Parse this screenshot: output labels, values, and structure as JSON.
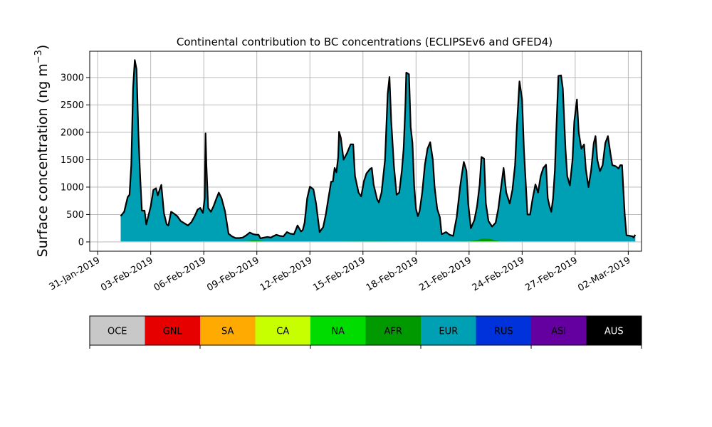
{
  "chart_data": {
    "type": "area",
    "title": "Continental contribution to BC concentrations (ECLIPSEv6 and GFED4)",
    "ylabel_main": "Surface concentration (ng m",
    "ylabel_sup": "−3",
    "ylabel_close": ")",
    "xlabel": "",
    "xlim": [
      -1.45,
      29.75
    ],
    "ylim": [
      -170,
      3480
    ],
    "grid": true,
    "x_ticks": [
      {
        "x": -1,
        "label": "31-Jan-2019"
      },
      {
        "x": 2,
        "label": "03-Feb-2019"
      },
      {
        "x": 5,
        "label": "06-Feb-2019"
      },
      {
        "x": 8,
        "label": "09-Feb-2019"
      },
      {
        "x": 11,
        "label": "12-Feb-2019"
      },
      {
        "x": 14,
        "label": "15-Feb-2019"
      },
      {
        "x": 17,
        "label": "18-Feb-2019"
      },
      {
        "x": 20,
        "label": "21-Feb-2019"
      },
      {
        "x": 23,
        "label": "24-Feb-2019"
      },
      {
        "x": 26,
        "label": "27-Feb-2019"
      },
      {
        "x": 29,
        "label": "02-Mar-2019"
      }
    ],
    "y_ticks": [
      0,
      500,
      1000,
      1500,
      2000,
      2500,
      3000
    ],
    "x_unit": "days after 01-Feb-2019 00:00",
    "series": [
      {
        "name": "EUR",
        "color": "#00a0b4",
        "points": [
          [
            0.3,
            470
          ],
          [
            0.5,
            550
          ],
          [
            0.7,
            820
          ],
          [
            0.8,
            860
          ],
          [
            0.9,
            1400
          ],
          [
            1.0,
            2800
          ],
          [
            1.1,
            3320
          ],
          [
            1.2,
            3150
          ],
          [
            1.3,
            2000
          ],
          [
            1.4,
            1200
          ],
          [
            1.5,
            570
          ],
          [
            1.65,
            570
          ],
          [
            1.75,
            320
          ],
          [
            2.0,
            650
          ],
          [
            2.15,
            950
          ],
          [
            2.3,
            980
          ],
          [
            2.4,
            850
          ],
          [
            2.5,
            950
          ],
          [
            2.6,
            1040
          ],
          [
            2.75,
            520
          ],
          [
            2.9,
            320
          ],
          [
            3.0,
            300
          ],
          [
            3.15,
            550
          ],
          [
            3.3,
            520
          ],
          [
            3.5,
            470
          ],
          [
            3.7,
            380
          ],
          [
            3.9,
            340
          ],
          [
            4.1,
            300
          ],
          [
            4.3,
            360
          ],
          [
            4.5,
            480
          ],
          [
            4.65,
            590
          ],
          [
            4.8,
            620
          ],
          [
            4.95,
            530
          ],
          [
            5.05,
            800
          ],
          [
            5.1,
            1980
          ],
          [
            5.15,
            1400
          ],
          [
            5.25,
            620
          ],
          [
            5.4,
            550
          ],
          [
            5.55,
            650
          ],
          [
            5.7,
            780
          ],
          [
            5.85,
            900
          ],
          [
            6.0,
            800
          ],
          [
            6.2,
            560
          ],
          [
            6.4,
            150
          ],
          [
            6.6,
            100
          ],
          [
            6.8,
            70
          ],
          [
            7.0,
            70
          ],
          [
            7.2,
            80
          ],
          [
            7.4,
            120
          ],
          [
            7.6,
            170
          ],
          [
            7.8,
            140
          ],
          [
            8.0,
            130
          ],
          [
            8.1,
            130
          ],
          [
            8.2,
            65
          ],
          [
            8.4,
            80
          ],
          [
            8.6,
            90
          ],
          [
            8.8,
            80
          ],
          [
            8.9,
            100
          ],
          [
            9.1,
            130
          ],
          [
            9.3,
            110
          ],
          [
            9.5,
            100
          ],
          [
            9.7,
            180
          ],
          [
            9.9,
            150
          ],
          [
            10.1,
            140
          ],
          [
            10.3,
            300
          ],
          [
            10.5,
            190
          ],
          [
            10.6,
            220
          ],
          [
            10.7,
            350
          ],
          [
            10.85,
            800
          ],
          [
            11.0,
            1010
          ],
          [
            11.2,
            960
          ],
          [
            11.35,
            700
          ],
          [
            11.55,
            180
          ],
          [
            11.75,
            270
          ],
          [
            11.9,
            500
          ],
          [
            12.05,
            800
          ],
          [
            12.2,
            1100
          ],
          [
            12.3,
            1100
          ],
          [
            12.4,
            1350
          ],
          [
            12.5,
            1270
          ],
          [
            12.6,
            1550
          ],
          [
            12.65,
            2010
          ],
          [
            12.75,
            1900
          ],
          [
            12.9,
            1500
          ],
          [
            13.1,
            1620
          ],
          [
            13.3,
            1780
          ],
          [
            13.45,
            1780
          ],
          [
            13.55,
            1200
          ],
          [
            13.75,
            900
          ],
          [
            13.9,
            830
          ],
          [
            14.05,
            1100
          ],
          [
            14.2,
            1250
          ],
          [
            14.4,
            1330
          ],
          [
            14.5,
            1350
          ],
          [
            14.6,
            1050
          ],
          [
            14.8,
            780
          ],
          [
            14.9,
            720
          ],
          [
            15.05,
            900
          ],
          [
            15.25,
            1500
          ],
          [
            15.4,
            2700
          ],
          [
            15.5,
            3010
          ],
          [
            15.6,
            2200
          ],
          [
            15.75,
            1400
          ],
          [
            15.9,
            860
          ],
          [
            16.05,
            900
          ],
          [
            16.2,
            1300
          ],
          [
            16.3,
            1700
          ],
          [
            16.4,
            2500
          ],
          [
            16.45,
            3090
          ],
          [
            16.6,
            3060
          ],
          [
            16.7,
            2100
          ],
          [
            16.8,
            1800
          ],
          [
            16.9,
            1000
          ],
          [
            17.0,
            600
          ],
          [
            17.1,
            470
          ],
          [
            17.2,
            560
          ],
          [
            17.35,
            900
          ],
          [
            17.5,
            1400
          ],
          [
            17.65,
            1700
          ],
          [
            17.8,
            1820
          ],
          [
            17.95,
            1500
          ],
          [
            18.05,
            1000
          ],
          [
            18.2,
            600
          ],
          [
            18.35,
            450
          ],
          [
            18.45,
            140
          ],
          [
            18.7,
            180
          ],
          [
            18.9,
            130
          ],
          [
            19.1,
            110
          ],
          [
            19.3,
            450
          ],
          [
            19.5,
            1020
          ],
          [
            19.6,
            1250
          ],
          [
            19.7,
            1460
          ],
          [
            19.85,
            1300
          ],
          [
            19.95,
            700
          ],
          [
            20.1,
            250
          ],
          [
            20.3,
            400
          ],
          [
            20.45,
            650
          ],
          [
            20.6,
            1050
          ],
          [
            20.7,
            1550
          ],
          [
            20.85,
            1520
          ],
          [
            20.95,
            700
          ],
          [
            21.1,
            380
          ],
          [
            21.3,
            280
          ],
          [
            21.5,
            350
          ],
          [
            21.65,
            600
          ],
          [
            21.85,
            1100
          ],
          [
            21.95,
            1350
          ],
          [
            22.1,
            900
          ],
          [
            22.3,
            700
          ],
          [
            22.45,
            950
          ],
          [
            22.6,
            1400
          ],
          [
            22.7,
            2100
          ],
          [
            22.85,
            2930
          ],
          [
            23.0,
            2600
          ],
          [
            23.1,
            1700
          ],
          [
            23.3,
            500
          ],
          [
            23.45,
            500
          ],
          [
            23.6,
            800
          ],
          [
            23.75,
            1050
          ],
          [
            23.9,
            900
          ],
          [
            24.05,
            1200
          ],
          [
            24.2,
            1350
          ],
          [
            24.35,
            1410
          ],
          [
            24.45,
            800
          ],
          [
            24.55,
            650
          ],
          [
            24.65,
            550
          ],
          [
            24.75,
            800
          ],
          [
            24.85,
            1300
          ],
          [
            24.95,
            2200
          ],
          [
            25.05,
            3030
          ],
          [
            25.2,
            3040
          ],
          [
            25.3,
            2800
          ],
          [
            25.45,
            1700
          ],
          [
            25.55,
            1200
          ],
          [
            25.7,
            1030
          ],
          [
            25.85,
            1500
          ],
          [
            25.95,
            2200
          ],
          [
            26.1,
            2600
          ],
          [
            26.2,
            2000
          ],
          [
            26.35,
            1700
          ],
          [
            26.5,
            1780
          ],
          [
            26.6,
            1330
          ],
          [
            26.75,
            1000
          ],
          [
            26.9,
            1300
          ],
          [
            27.05,
            1800
          ],
          [
            27.15,
            1930
          ],
          [
            27.25,
            1500
          ],
          [
            27.4,
            1290
          ],
          [
            27.55,
            1400
          ],
          [
            27.7,
            1800
          ],
          [
            27.85,
            1930
          ],
          [
            28.0,
            1600
          ],
          [
            28.1,
            1400
          ],
          [
            28.3,
            1380
          ],
          [
            28.45,
            1340
          ],
          [
            28.55,
            1400
          ],
          [
            28.65,
            1400
          ],
          [
            28.7,
            1100
          ],
          [
            28.8,
            500
          ],
          [
            28.9,
            120
          ],
          [
            29.1,
            110
          ],
          [
            29.25,
            100
          ],
          [
            29.3,
            80
          ],
          [
            29.4,
            130
          ]
        ]
      },
      {
        "name": "AFR",
        "color": "#009900",
        "points": [
          [
            0.3,
            10
          ],
          [
            6.5,
            10
          ],
          [
            7.0,
            12
          ],
          [
            7.5,
            14
          ],
          [
            7.8,
            28
          ],
          [
            8.1,
            24
          ],
          [
            8.5,
            10
          ],
          [
            10.0,
            12
          ],
          [
            12.0,
            10
          ],
          [
            14.0,
            14
          ],
          [
            17.0,
            12
          ],
          [
            19.0,
            12
          ],
          [
            20.0,
            14
          ],
          [
            20.2,
            22
          ],
          [
            20.5,
            34
          ],
          [
            20.75,
            60
          ],
          [
            20.9,
            62
          ],
          [
            21.2,
            55
          ],
          [
            21.45,
            30
          ],
          [
            21.7,
            14
          ],
          [
            22.5,
            10
          ],
          [
            25.0,
            12
          ],
          [
            27.0,
            12
          ],
          [
            29.4,
            10
          ]
        ]
      },
      {
        "name": "CA",
        "color": "#c8ff00",
        "points": [
          [
            0.3,
            10
          ],
          [
            29.4,
            10
          ]
        ]
      }
    ]
  },
  "legend": {
    "items": [
      {
        "name": "OCE",
        "color": "#c8c8c8"
      },
      {
        "name": "GNL",
        "color": "#e60000"
      },
      {
        "name": "SA",
        "color": "#ffaa00"
      },
      {
        "name": "CA",
        "color": "#c8ff00"
      },
      {
        "name": "NA",
        "color": "#00dc00"
      },
      {
        "name": "AFR",
        "color": "#009900"
      },
      {
        "name": "EUR",
        "color": "#00a0b4"
      },
      {
        "name": "RUS",
        "color": "#0032dc"
      },
      {
        "name": "ASI",
        "color": "#6400a0"
      },
      {
        "name": "AUS",
        "color": "#000000"
      }
    ]
  }
}
